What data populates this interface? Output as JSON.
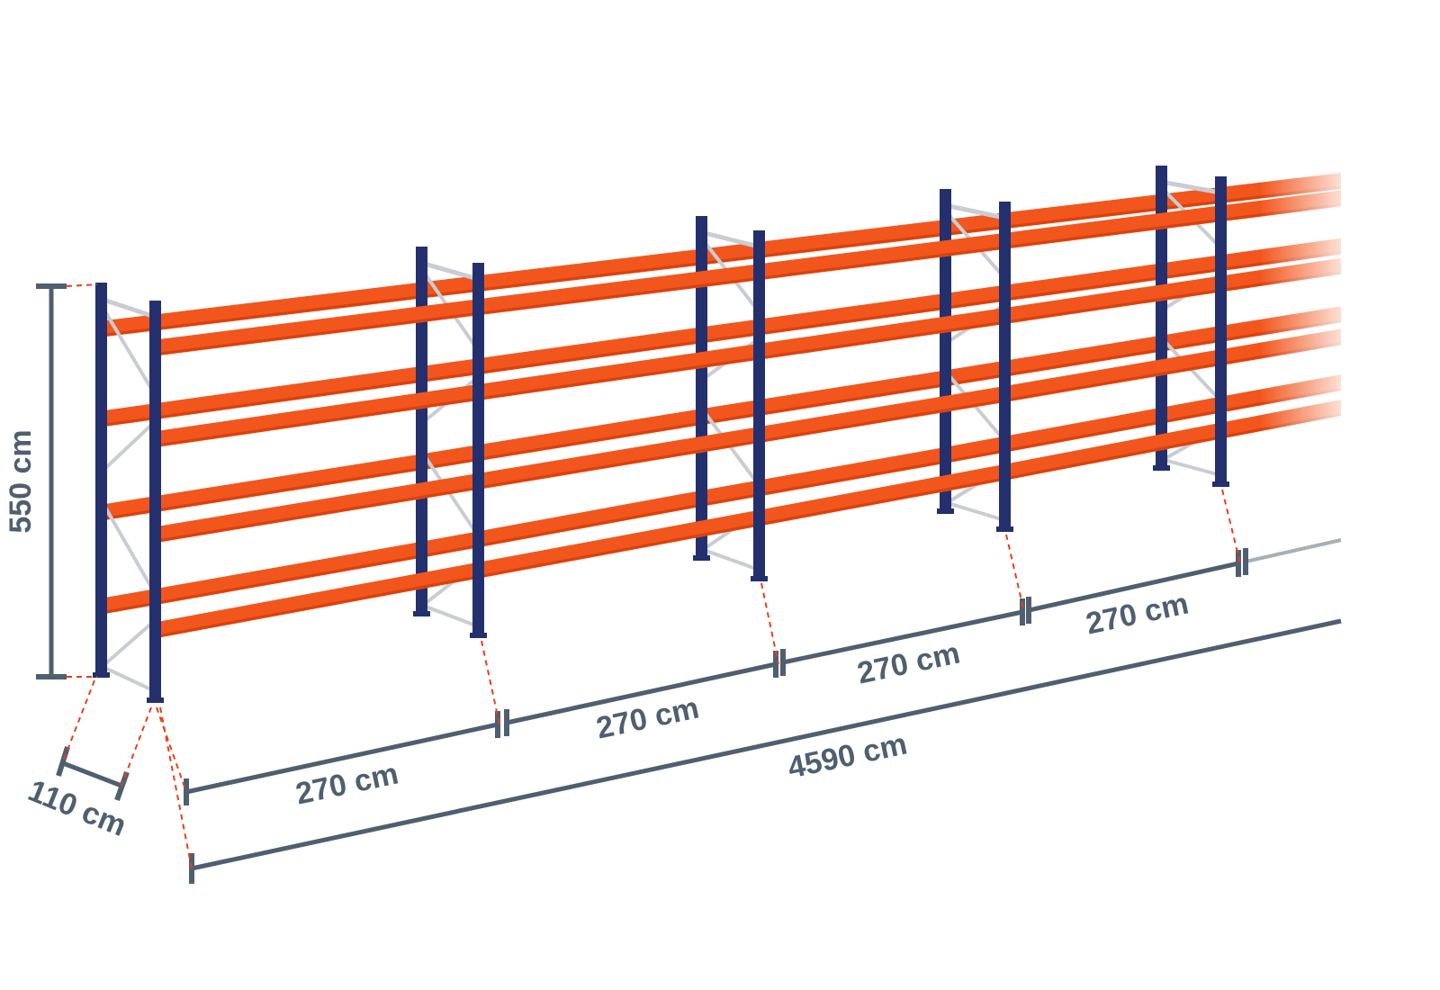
{
  "diagram": {
    "colors": {
      "upright": "#24306e",
      "beam": "#f2561d",
      "beam_shadow": "#d8420f",
      "bracing": "#c9ccd2",
      "dimension": "#4f5f70",
      "guide": "#e8401a"
    },
    "bays_visible": 4,
    "frames_visible": 5,
    "beam_levels": 4,
    "dimensions": {
      "height": "550 cm",
      "depth": "110 cm",
      "bay_widths": [
        "270 cm",
        "270 cm",
        "270 cm",
        "270 cm"
      ],
      "total_length": "4590 cm"
    }
  }
}
